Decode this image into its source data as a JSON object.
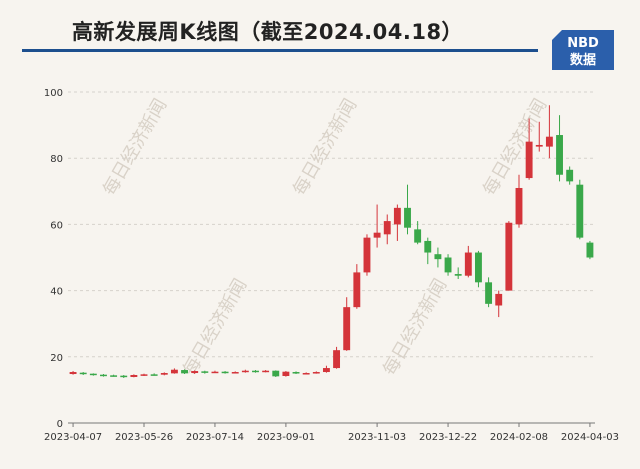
{
  "title": "高新发展周K线图（截至2024.04.18）",
  "logo": {
    "top": "NBD",
    "bottom": "数据",
    "color": "#2b5fab"
  },
  "watermark": "每日经济新闻",
  "colors": {
    "up": "#d4343a",
    "down": "#3aa84a",
    "grid": "#d6d2cc",
    "rule": "#1d4f8e"
  },
  "chart_data": {
    "type": "candlestick",
    "title": "高新发展周K线图（截至2024.04.18）",
    "ylim": [
      0,
      100
    ],
    "yticks": [
      0,
      20,
      40,
      60,
      80,
      100
    ],
    "xtick_labels": [
      "2023-04-07",
      "2023-05-26",
      "2023-07-14",
      "2023-09-01",
      "2023-11-03",
      "2023-12-22",
      "2024-02-08",
      "2024-04-03"
    ],
    "xtick_index": [
      0,
      7,
      14,
      21,
      30,
      37,
      44,
      51
    ],
    "candles": [
      [
        14.8,
        15.4,
        15.7,
        14.6
      ],
      [
        15.2,
        14.8,
        15.4,
        14.5
      ],
      [
        14.9,
        14.6,
        15.0,
        14.3
      ],
      [
        14.6,
        14.3,
        14.8,
        14.0
      ],
      [
        14.4,
        14.3,
        14.6,
        14.0
      ],
      [
        14.3,
        14.0,
        14.5,
        13.6
      ],
      [
        13.9,
        14.5,
        14.7,
        13.8
      ],
      [
        14.4,
        14.7,
        14.9,
        14.2
      ],
      [
        14.7,
        14.5,
        15.0,
        14.3
      ],
      [
        14.6,
        15.1,
        15.3,
        14.4
      ],
      [
        15.0,
        16.1,
        16.5,
        14.9
      ],
      [
        16.0,
        15.0,
        16.2,
        14.8
      ],
      [
        15.1,
        15.7,
        15.9,
        14.8
      ],
      [
        15.6,
        15.2,
        15.8,
        14.9
      ],
      [
        15.3,
        15.5,
        15.8,
        15.1
      ],
      [
        15.5,
        15.2,
        15.7,
        14.9
      ],
      [
        15.2,
        15.4,
        15.6,
        15.0
      ],
      [
        15.4,
        15.8,
        16.1,
        15.2
      ],
      [
        15.8,
        15.4,
        16.0,
        15.2
      ],
      [
        15.5,
        15.8,
        16.0,
        15.3
      ],
      [
        15.8,
        14.1,
        15.9,
        13.9
      ],
      [
        14.2,
        15.5,
        15.7,
        14.0
      ],
      [
        15.4,
        15.0,
        15.6,
        14.8
      ],
      [
        15.0,
        15.1,
        15.3,
        14.8
      ],
      [
        15.1,
        15.4,
        15.6,
        14.9
      ],
      [
        15.4,
        16.6,
        17.3,
        15.2
      ],
      [
        16.6,
        22.0,
        23.0,
        16.4
      ],
      [
        22.0,
        35.0,
        38.0,
        21.8
      ],
      [
        35.0,
        45.5,
        48.0,
        34.5
      ],
      [
        45.5,
        56.0,
        57.0,
        44.5
      ],
      [
        56.0,
        57.5,
        66.0,
        53.0
      ],
      [
        57.0,
        61.0,
        63.0,
        54.0
      ],
      [
        60.0,
        65.0,
        66.0,
        55.0
      ],
      [
        65.0,
        59.0,
        72.0,
        57.0
      ],
      [
        58.5,
        54.5,
        61.0,
        54.0
      ],
      [
        55.0,
        51.5,
        56.0,
        48.0
      ],
      [
        51.0,
        49.5,
        53.0,
        47.0
      ],
      [
        50.0,
        45.5,
        51.0,
        44.5
      ],
      [
        45.0,
        44.5,
        47.0,
        43.5
      ],
      [
        44.5,
        51.5,
        53.5,
        44.0
      ],
      [
        51.5,
        42.5,
        52.0,
        41.0
      ],
      [
        42.5,
        36.0,
        44.0,
        35.0
      ],
      [
        35.5,
        39.0,
        40.0,
        32.0
      ],
      [
        40.0,
        60.5,
        61.0,
        40.0
      ],
      [
        60.0,
        71.0,
        75.0,
        59.0
      ],
      [
        74.0,
        85.0,
        92.0,
        73.5
      ],
      [
        83.5,
        84.0,
        91.0,
        82.0
      ],
      [
        83.5,
        86.5,
        96.0,
        80.0
      ],
      [
        87.0,
        75.0,
        93.0,
        73.0
      ],
      [
        76.5,
        73.0,
        77.5,
        72.0
      ],
      [
        72.0,
        56.0,
        73.5,
        55.5
      ],
      [
        54.5,
        50.0,
        55.0,
        49.5
      ]
    ]
  }
}
